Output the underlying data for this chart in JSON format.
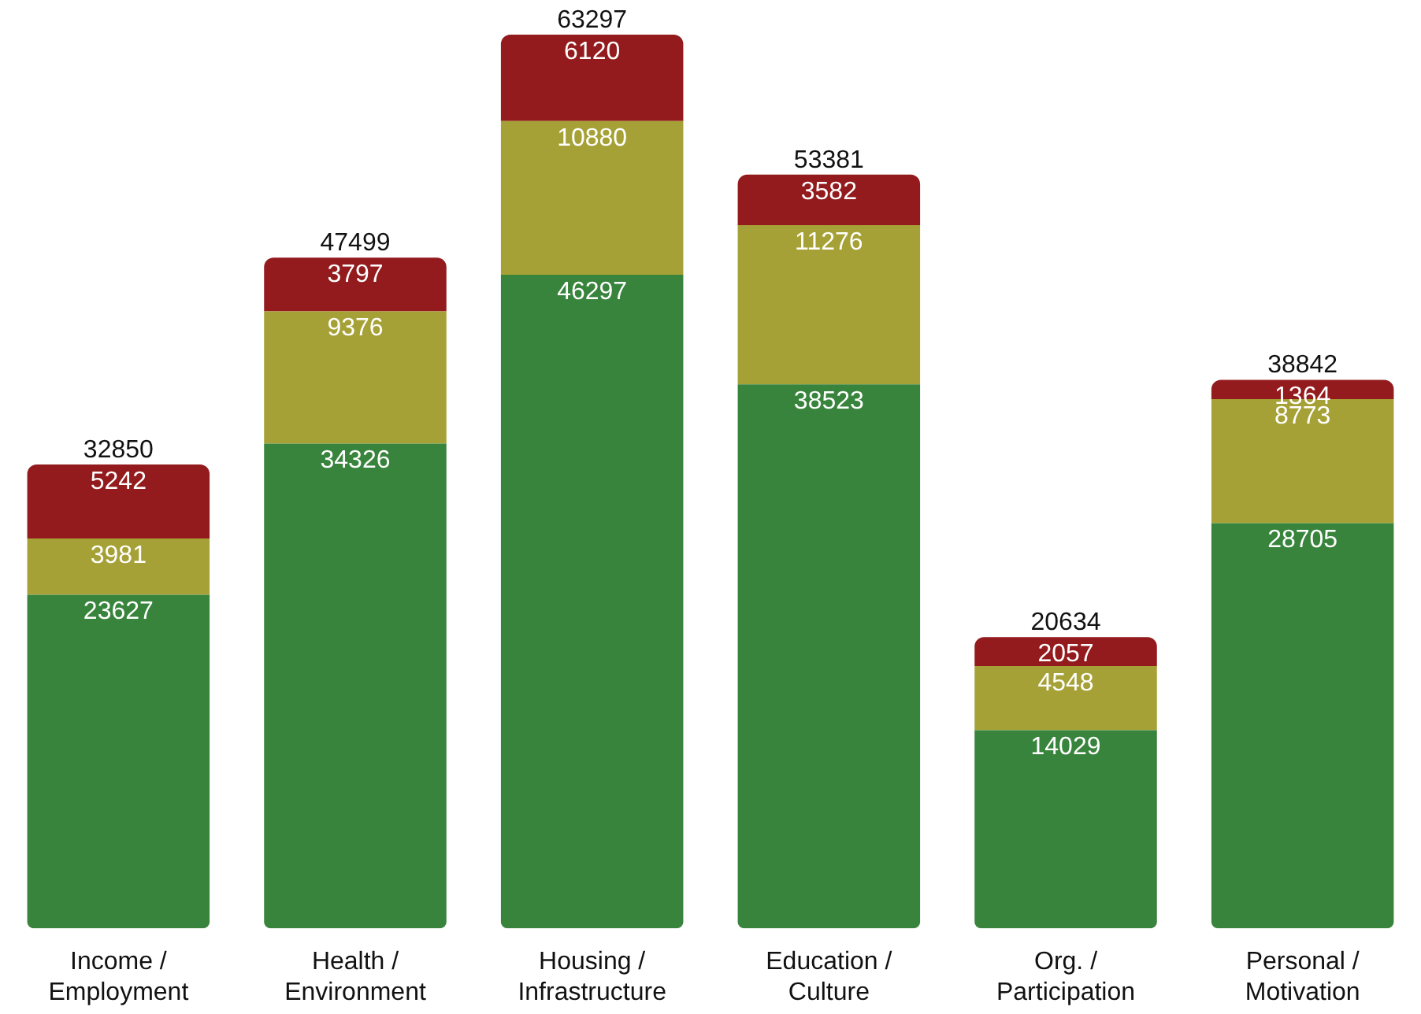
{
  "chart_data": {
    "type": "bar",
    "stacked": true,
    "categories": [
      "Income / Employment",
      "Health / Environment",
      "Housing / Infrastructure",
      "Education / Culture",
      "Org. / Participation",
      "Personal / Motivation"
    ],
    "series": [
      {
        "color": "#38843c",
        "values": [
          23627,
          34326,
          46297,
          38523,
          14029,
          28705
        ]
      },
      {
        "color": "#a6a136",
        "values": [
          3981,
          9376,
          10880,
          11276,
          4548,
          8773
        ]
      },
      {
        "color": "#931b1d",
        "values": [
          5242,
          3797,
          6120,
          3582,
          2057,
          1364
        ]
      }
    ],
    "data_labels": true,
    "totals": [
      "32850",
      "47499",
      "63297",
      "53381",
      "20634",
      "38842"
    ],
    "grid": false,
    "legend": false
  }
}
